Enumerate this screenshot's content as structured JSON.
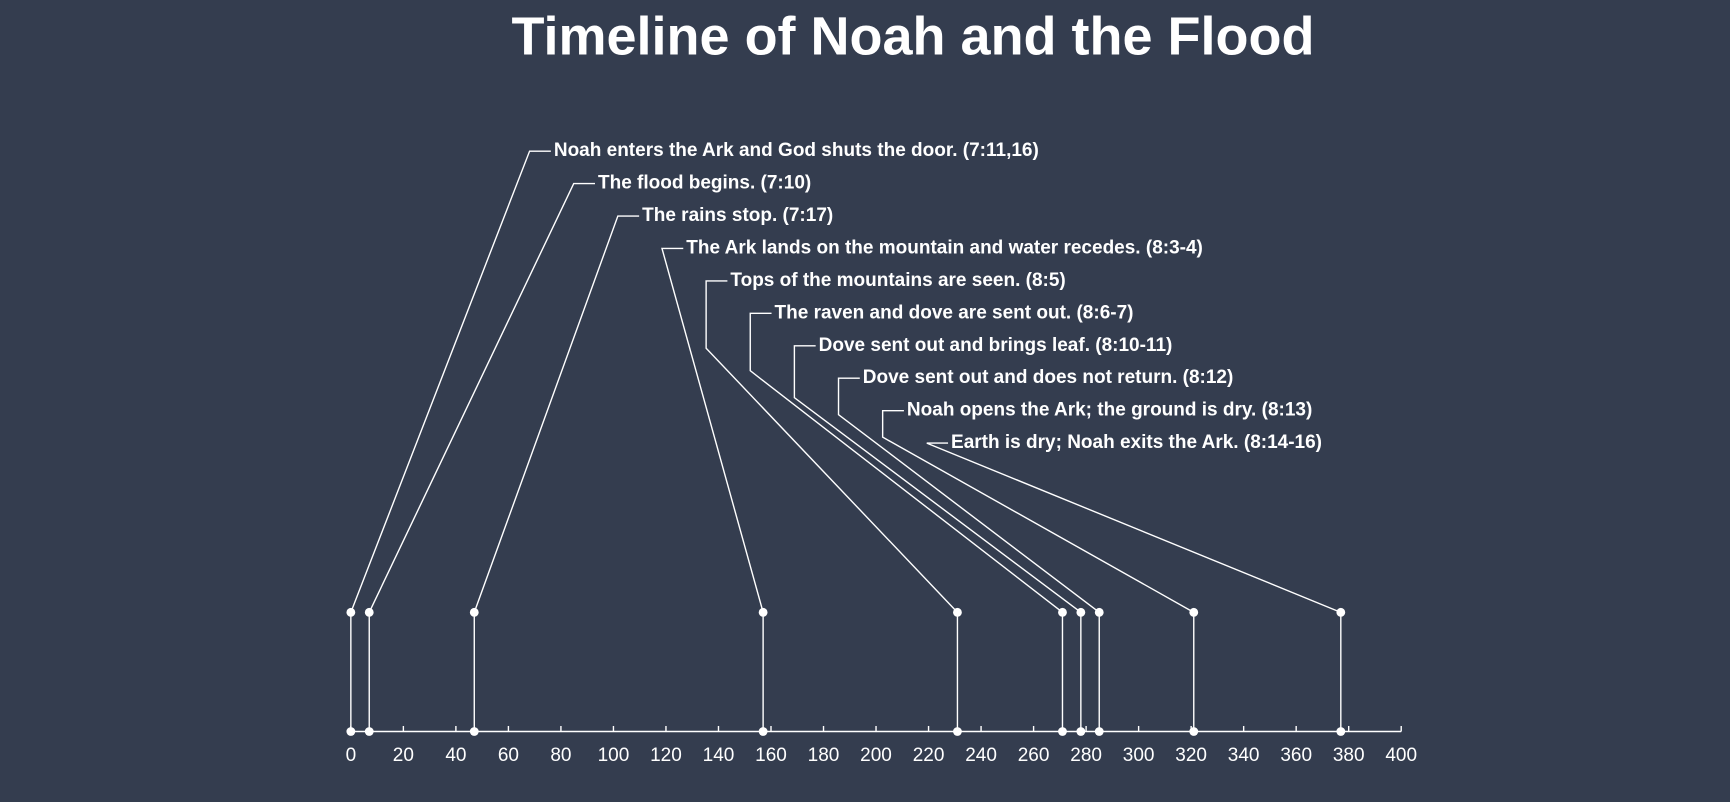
{
  "chart_data": {
    "type": "timeline",
    "title": "Timeline of Noah and the Flood",
    "events": [
      {
        "label": "Noah enters the Ark and God shuts the door. (7:11,16)",
        "day": 0
      },
      {
        "label": "The flood begins. (7:10)",
        "day": 7
      },
      {
        "label": "The rains stop. (7:17)",
        "day": 47
      },
      {
        "label": "The Ark lands on the mountain and water recedes. (8:3-4)",
        "day": 157
      },
      {
        "label": "Tops of the mountains are seen. (8:5)",
        "day": 231
      },
      {
        "label": "The raven and dove are sent out. (8:6-7)",
        "day": 271
      },
      {
        "label": "Dove sent out and brings leaf. (8:10-11)",
        "day": 278
      },
      {
        "label": "Dove sent out and does not return. (8:12)",
        "day": 285
      },
      {
        "label": "Noah opens the Ark; the ground is dry. (8:13)",
        "day": 321
      },
      {
        "label": "Earth is dry; Noah exits the Ark. (8:14-16)",
        "day": 377
      }
    ],
    "color": "#ffffff",
    "xlim": [
      0,
      400
    ],
    "xticks": [
      0,
      20,
      40,
      60,
      80,
      100,
      120,
      140,
      160,
      180,
      200,
      220,
      240,
      260,
      280,
      300,
      320,
      340,
      360,
      380,
      400
    ]
  }
}
